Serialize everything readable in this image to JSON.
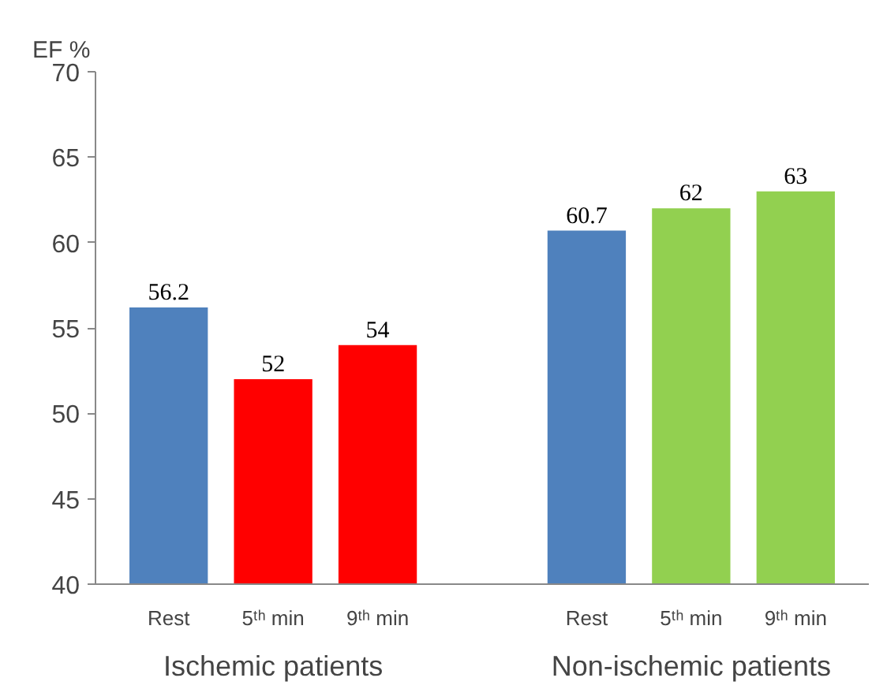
{
  "chart_data": {
    "type": "bar",
    "ylabel": "EF %",
    "categories": [
      "Rest",
      "5ᵗʰ min",
      "9ᵗʰ min",
      "Rest",
      "5ᵗʰ min",
      "9ᵗʰ min"
    ],
    "values": [
      56.2,
      52,
      54,
      60.7,
      62,
      63
    ],
    "colors": [
      "#4f81bd",
      "#ff0000",
      "#ff0000",
      "#4f81bd",
      "#92d050",
      "#92d050"
    ],
    "ylim": [
      40,
      70
    ],
    "yticks": [
      40,
      45,
      50,
      55,
      60,
      65,
      70
    ],
    "grid": false,
    "data_labels": true,
    "annotations": [
      "Ischemic patients",
      "Non-ischemic patients"
    ]
  }
}
